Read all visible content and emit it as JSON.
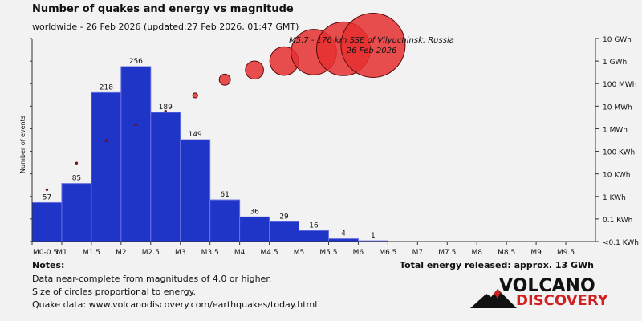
{
  "header": {
    "title": "Number of quakes and energy vs magnitude",
    "subtitle": "worldwide - 26 Feb 2026 (updated:27 Feb 2026, 01:47 GMT)"
  },
  "chart_data": {
    "type": "bar",
    "ylabel": "Number of events",
    "x_tick_labels": [
      "M0-0.5",
      "M1",
      "M1.5",
      "M2",
      "M2.5",
      "M3",
      "M3.5",
      "M4",
      "M4.5",
      "M5",
      "M5.5",
      "M6",
      "M6.5",
      "M7",
      "M7.5",
      "M8",
      "M8.5",
      "M9",
      "M9.5"
    ],
    "bins": [
      "M0-0.5",
      "M0.5-1",
      "M1-1.5",
      "M1.5-2",
      "M2-2.5",
      "M2.5-3",
      "M3-3.5",
      "M3.5-4",
      "M4-4.5",
      "M4.5-5",
      "M5-5.5",
      "M5.5-6"
    ],
    "values": [
      57,
      85,
      218,
      256,
      189,
      149,
      61,
      36,
      29,
      16,
      4,
      1
    ],
    "ylim": [
      0,
      256
    ],
    "energy_axis_labels": [
      "10 GWh",
      "1 GWh",
      "100 MWh",
      "10 MWh",
      "1 MWh",
      "100 KWh",
      "10 KWh",
      "1 KWh",
      "0.1 KWh",
      "<0.1 KWh"
    ],
    "energy_points_wh": [
      {
        "magnitude_bin": "M0-0.5",
        "energy_wh": 2000
      },
      {
        "magnitude_bin": "M0.5-1",
        "energy_wh": 30000
      },
      {
        "magnitude_bin": "M1-1.5",
        "energy_wh": 300000
      },
      {
        "magnitude_bin": "M1.5-2",
        "energy_wh": 1500000
      },
      {
        "magnitude_bin": "M2-2.5",
        "energy_wh": 6000000
      },
      {
        "magnitude_bin": "M2.5-3",
        "energy_wh": 30000000
      },
      {
        "magnitude_bin": "M3-3.5",
        "energy_wh": 150000000
      },
      {
        "magnitude_bin": "M3.5-4",
        "energy_wh": 400000000
      },
      {
        "magnitude_bin": "M4-4.5",
        "energy_wh": 1000000000
      },
      {
        "magnitude_bin": "M4.5-5",
        "energy_wh": 2500000000
      },
      {
        "magnitude_bin": "M5-5.5",
        "energy_wh": 3500000000
      },
      {
        "magnitude_bin": "M5.5-6",
        "energy_wh": 5000000000
      }
    ],
    "annotation": [
      "M5.7 - 176 km SSE of Vilyuchinsk, Russia",
      "26 Feb 2026"
    ],
    "colors": {
      "bar": "#1f35c8",
      "bar_stroke": "#1a1a80",
      "energy": "#e53030",
      "energy_small": "#8a1010"
    }
  },
  "notes": {
    "heading": "Notes:",
    "lines": [
      "Data near-complete from magnitudes of 4.0 or higher.",
      "Size of circles proportional to energy.",
      "Quake data: www.volcanodiscovery.com/earthquakes/today.html"
    ],
    "total_energy": "Total energy released: approx. 13 GWh"
  },
  "logo": {
    "line1": "VOLCANO",
    "line2": "DISCOVERY"
  }
}
